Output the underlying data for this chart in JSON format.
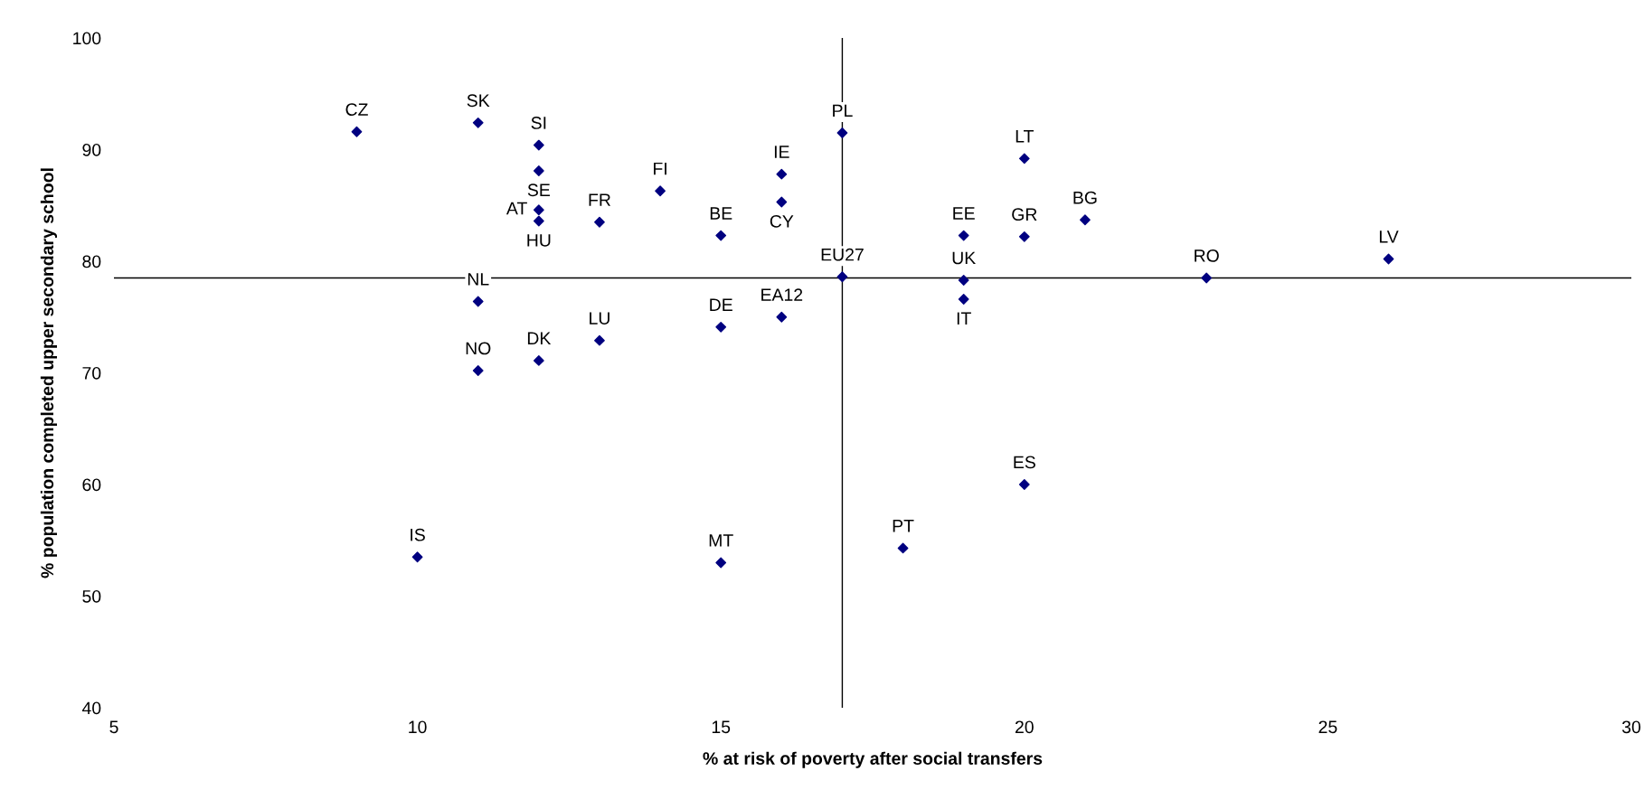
{
  "chart_data": {
    "type": "scatter",
    "xlabel": "% at risk of poverty after social transfers",
    "ylabel": "% population completed upper secondary school",
    "xlim": [
      5,
      30
    ],
    "xticks": [
      5,
      10,
      15,
      20,
      25,
      30
    ],
    "ylim": [
      40,
      100
    ],
    "yticks": [
      40,
      50,
      60,
      70,
      80,
      90,
      100
    ],
    "grid": false,
    "legend": false,
    "marker": "diamond",
    "ref_lines": [
      {
        "axis": "x",
        "value": 17,
        "color": "#000000"
      },
      {
        "axis": "y",
        "value": 78.5,
        "color": "#000000"
      }
    ],
    "series": [
      {
        "color": "#000080",
        "x": [
          9,
          11,
          12,
          12,
          12,
          12,
          13,
          14,
          15,
          16,
          16,
          17,
          17,
          16,
          15,
          13,
          12,
          11,
          11,
          10,
          15,
          18,
          20,
          19,
          19,
          19,
          20,
          20,
          21,
          23,
          26
        ],
        "values": [
          91.6,
          92.4,
          90.4,
          88.1,
          84.6,
          83.6,
          83.5,
          86.3,
          82.3,
          87.8,
          85.3,
          91.5,
          78.6,
          75.0,
          74.1,
          72.9,
          71.1,
          70.2,
          76.4,
          53.5,
          53.0,
          54.3,
          60.0,
          76.6,
          78.3,
          82.3,
          82.2,
          89.2,
          83.7,
          78.5,
          80.2
        ],
        "value_labels": [
          "CZ",
          "SK",
          "SI",
          "SE",
          "AT",
          "HU",
          "FR",
          "FI",
          "BE",
          "IE",
          "CY",
          "PL",
          "EU27",
          "EA12",
          "DE",
          "LU",
          "DK",
          "NO",
          "NL",
          "IS",
          "MT",
          "PT",
          "ES",
          "IT",
          "UK",
          "EE",
          "GR",
          "LT",
          "BG",
          "RO",
          "LV"
        ]
      }
    ]
  }
}
